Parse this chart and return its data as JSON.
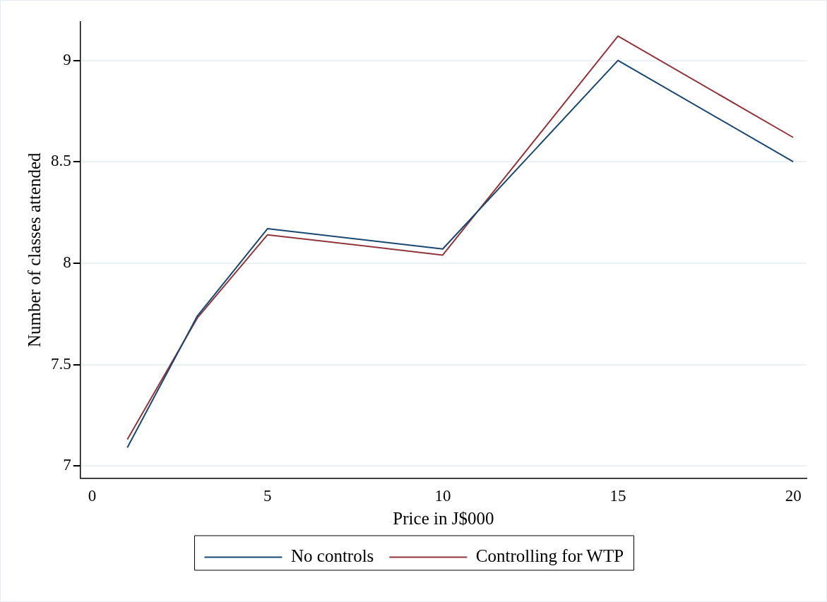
{
  "chart_data": {
    "type": "line",
    "xlabel": "Price in J$000",
    "ylabel": "Number of classes attended",
    "x": [
      1,
      3,
      5,
      10,
      15,
      20
    ],
    "series": [
      {
        "name": "No controls",
        "color": "#1a476f",
        "values": [
          7.09,
          7.74,
          8.17,
          8.07,
          9.0,
          8.5
        ]
      },
      {
        "name": "Controlling for WTP",
        "color": "#90353b",
        "values": [
          7.13,
          7.73,
          8.14,
          8.04,
          9.12,
          8.62
        ]
      }
    ],
    "xlim": [
      -0.34,
      20.38
    ],
    "xticks": [
      0,
      5,
      10,
      15,
      20
    ],
    "ylim": [
      6.94,
      9.19
    ],
    "yticks": [
      7,
      7.5,
      8,
      8.5,
      9
    ],
    "grid": "y",
    "legend": "bottom",
    "marker": "none",
    "line_style": "solid"
  }
}
